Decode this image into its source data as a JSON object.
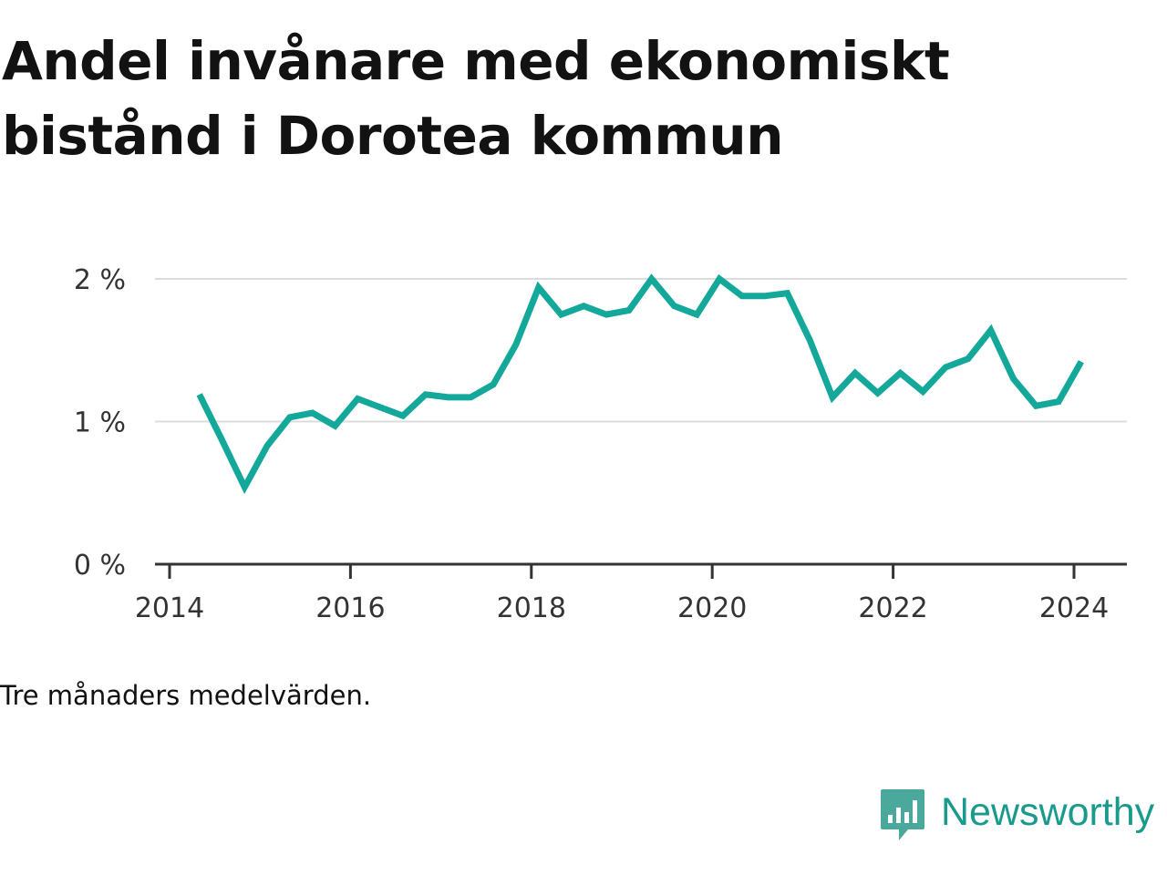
{
  "title": "Andel invånare med ekonomiskt bistånd i Dorotea kommun",
  "caption": "Tre månaders medelvärden.",
  "brand": {
    "name": "Newsworthy",
    "icon": "newsworthy-logo-icon",
    "color": "#1a9a8c"
  },
  "chart_data": {
    "type": "line",
    "title": "Andel invånare med ekonomiskt bistånd i Dorotea kommun",
    "xlabel": "",
    "ylabel": "",
    "line_color": "#13a89a",
    "grid": true,
    "xlim": [
      2014.0,
      2024.5
    ],
    "ylim": [
      0,
      2
    ],
    "x_ticks": [
      2014,
      2016,
      2018,
      2020,
      2022,
      2024
    ],
    "x_tick_labels": [
      "2014",
      "2016",
      "2018",
      "2020",
      "2022",
      "2024"
    ],
    "y_ticks": [
      0,
      1,
      2
    ],
    "y_tick_labels": [
      "0 %",
      "1 %",
      "2 %"
    ],
    "series": [
      {
        "x": [
          2014.33,
          2014.58,
          2014.83,
          2015.08,
          2015.33,
          2015.58,
          2015.83,
          2016.08,
          2016.33,
          2016.58,
          2016.83,
          2017.08,
          2017.33,
          2017.58,
          2017.83,
          2018.08,
          2018.33,
          2018.58,
          2018.83,
          2019.08,
          2019.33,
          2019.58,
          2019.83,
          2020.08,
          2020.33,
          2020.58,
          2020.83,
          2021.08,
          2021.33,
          2021.58,
          2021.83,
          2022.08,
          2022.33,
          2022.58,
          2022.83,
          2023.08,
          2023.33,
          2023.58,
          2023.83,
          2024.08
        ],
        "y": [
          1.19,
          0.87,
          0.54,
          0.83,
          1.03,
          1.06,
          0.97,
          1.16,
          1.1,
          1.04,
          1.19,
          1.17,
          1.17,
          1.26,
          1.54,
          1.94,
          1.75,
          1.81,
          1.75,
          1.78,
          2.0,
          1.81,
          1.75,
          2.0,
          1.88,
          1.88,
          1.9,
          1.57,
          1.17,
          1.34,
          1.2,
          1.34,
          1.21,
          1.38,
          1.44,
          1.64,
          1.3,
          1.11,
          1.14,
          1.42
        ]
      }
    ]
  }
}
